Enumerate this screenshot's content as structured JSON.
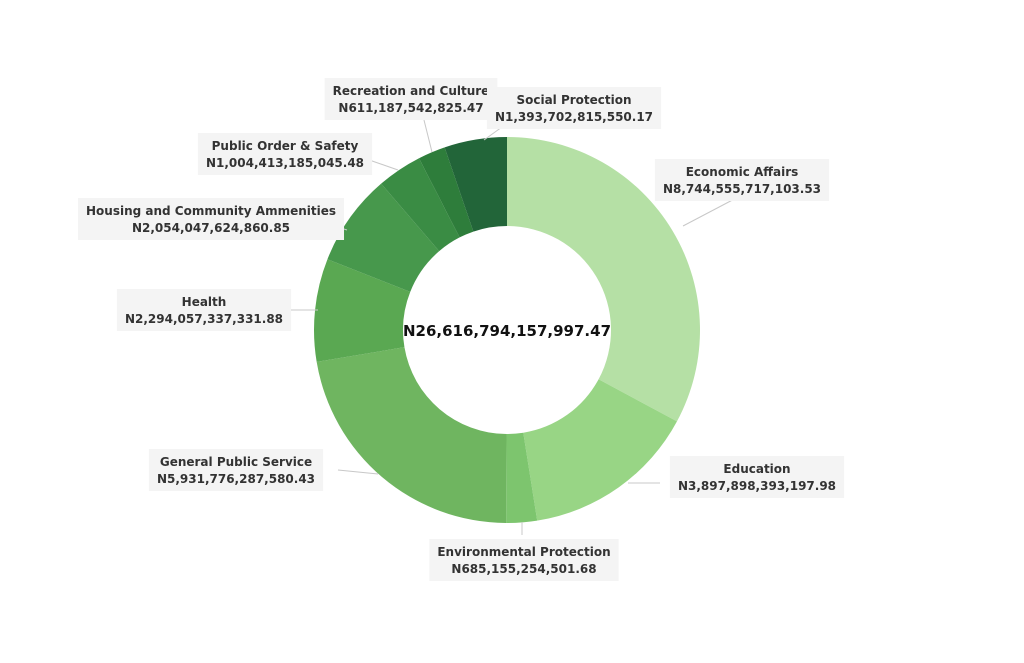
{
  "chart_data": {
    "type": "pie",
    "donut": true,
    "total_label": "N26,616,794,157,997.47",
    "slices": [
      {
        "name": "Economic Affairs",
        "value_label": "N8,744,555,717,103.53",
        "value": 8744555717103.53,
        "color": "#b5e0a5"
      },
      {
        "name": "Education",
        "value_label": "N3,897,898,393,197.98",
        "value": 3897898393197.98,
        "color": "#98d585"
      },
      {
        "name": "Environmental Protection",
        "value_label": "N685,155,254,501.68",
        "value": 685155254501.68,
        "color": "#7dc56e"
      },
      {
        "name": "General Public Service",
        "value_label": "N5,931,776,287,580.43",
        "value": 5931776287580.43,
        "color": "#6fb560"
      },
      {
        "name": "Health",
        "value_label": "N2,294,057,337,331.88",
        "value": 2294057337331.88,
        "color": "#5aa852"
      },
      {
        "name": "Housing and Community Ammenities",
        "value_label": "N2,054,047,624,860.85",
        "value": 2054047624860.85,
        "color": "#47984c"
      },
      {
        "name": "Public Order & Safety",
        "value_label": "N1,004,413,185,045.48",
        "value": 1004413185045.48,
        "color": "#3a8c44"
      },
      {
        "name": "Recreation and Culture",
        "value_label": "N611,187,542,825.47",
        "value": 611187542825.47,
        "color": "#2e7d3b"
      },
      {
        "name": "Social Protection",
        "value_label": "N1,393,702,815,550.17",
        "value": 1393702815550.17,
        "color": "#226539"
      }
    ]
  }
}
